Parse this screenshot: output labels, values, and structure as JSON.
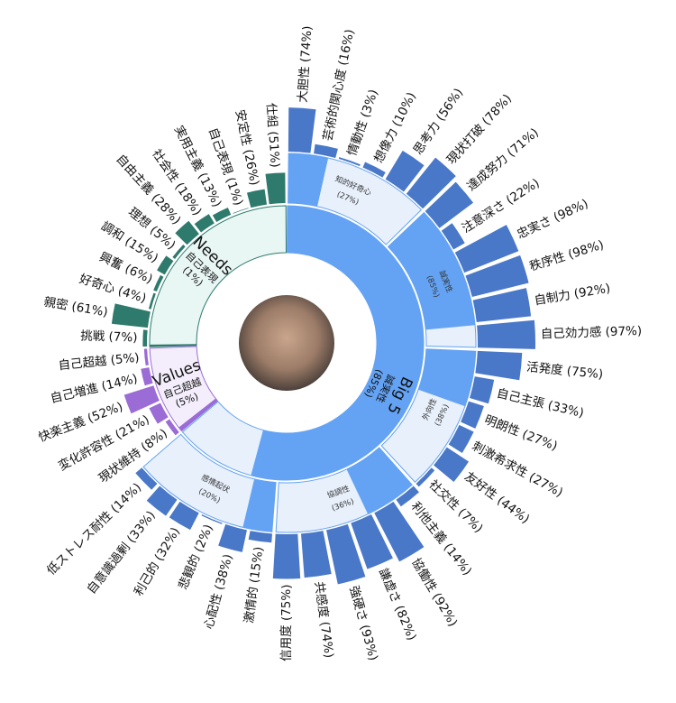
{
  "chart_data": {
    "type": "sunburst",
    "groups": [
      {
        "name": "Big 5",
        "dominant": "誠実性",
        "value": 85,
        "value_label": "(85%)",
        "color": "#4a78c8",
        "fill": "#64a3f4",
        "light": "#e8f0fc",
        "traits": [
          {
            "name": "知的好奇心",
            "value": 27,
            "value_label": "(27%)",
            "facets": [
              {
                "label": "大胆性 (74%)",
                "value": 74
              },
              {
                "label": "芸術的関心度 (16%)",
                "value": 16
              },
              {
                "label": "情動性 (3%)",
                "value": 3
              },
              {
                "label": "想像力 (10%)",
                "value": 10
              },
              {
                "label": "思考力 (56%)",
                "value": 56
              },
              {
                "label": "現状打破 (78%)",
                "value": 78
              }
            ]
          },
          {
            "name": "誠実性",
            "value": 85,
            "value_label": "(85%)",
            "facets": [
              {
                "label": "達成努力 (71%)",
                "value": 71
              },
              {
                "label": "注意深さ (22%)",
                "value": 22
              },
              {
                "label": "忠実さ (98%)",
                "value": 98
              },
              {
                "label": "秩序性 (98%)",
                "value": 98
              },
              {
                "label": "自制力 (92%)",
                "value": 92
              },
              {
                "label": "自己効力感 (97%)",
                "value": 97
              }
            ]
          },
          {
            "name": "外向性",
            "value": 38,
            "value_label": "(38%)",
            "facets": [
              {
                "label": "活発度 (75%)",
                "value": 75
              },
              {
                "label": "自己主張 (33%)",
                "value": 33
              },
              {
                "label": "明朗性 (27%)",
                "value": 27
              },
              {
                "label": "刺激希求性 (27%)",
                "value": 27
              },
              {
                "label": "友好性 (44%)",
                "value": 44
              },
              {
                "label": "社交性 (7%)",
                "value": 7
              }
            ]
          },
          {
            "name": "協調性",
            "value": 36,
            "value_label": "(36%)",
            "facets": [
              {
                "label": "利他主義 (14%)",
                "value": 14
              },
              {
                "label": "協働性 (92%)",
                "value": 92
              },
              {
                "label": "謙虚さ (82%)",
                "value": 82
              },
              {
                "label": "強硬さ (93%)",
                "value": 93
              },
              {
                "label": "共感度 (74%)",
                "value": 74
              },
              {
                "label": "信用度 (75%)",
                "value": 75
              }
            ]
          },
          {
            "name": "感情起伏",
            "value": 20,
            "value_label": "(20%)",
            "facets": [
              {
                "label": "激情的 (15%)",
                "value": 15
              },
              {
                "label": "心配性 (38%)",
                "value": 38
              },
              {
                "label": "悲観的 (2%)",
                "value": 2
              },
              {
                "label": "利己的 (32%)",
                "value": 32
              },
              {
                "label": "自意識過剰 (33%)",
                "value": 33
              },
              {
                "label": "低ストレス耐性 (14%)",
                "value": 14
              }
            ]
          }
        ]
      },
      {
        "name": "Values",
        "dominant": "自己超越",
        "value": 5,
        "value_label": "(5%)",
        "color": "#9b6bd6",
        "fill": "#9b6bd6",
        "light": "#f4eefc",
        "facets": [
          {
            "label": "現状維持 (8%)",
            "value": 8
          },
          {
            "label": "変化許容性 (21%)",
            "value": 21
          },
          {
            "label": "快楽主義 (52%)",
            "value": 52
          },
          {
            "label": "自己増進 (14%)",
            "value": 14
          },
          {
            "label": "自己超越 (5%)",
            "value": 5
          }
        ]
      },
      {
        "name": "Needs",
        "dominant": "自己表現",
        "value": 1,
        "value_label": "(1%)",
        "color": "#2e7a6c",
        "fill": "#2e7a6c",
        "light": "#e8f6f4",
        "facets": [
          {
            "label": "挑戦 (7%)",
            "value": 7
          },
          {
            "label": "親密 (61%)",
            "value": 61
          },
          {
            "label": "好奇心 (4%)",
            "value": 4
          },
          {
            "label": "興奮 (6%)",
            "value": 6
          },
          {
            "label": "調和 (15%)",
            "value": 15
          },
          {
            "label": "理想 (5%)",
            "value": 5
          },
          {
            "label": "自由主義 (28%)",
            "value": 28
          },
          {
            "label": "社会性 (18%)",
            "value": 18
          },
          {
            "label": "実用主義 (13%)",
            "value": 13
          },
          {
            "label": "自己表現 (1%)",
            "value": 1
          },
          {
            "label": "安定性 (26%)",
            "value": 26
          },
          {
            "label": "仕組 (51%)",
            "value": 51
          }
        ]
      }
    ]
  }
}
